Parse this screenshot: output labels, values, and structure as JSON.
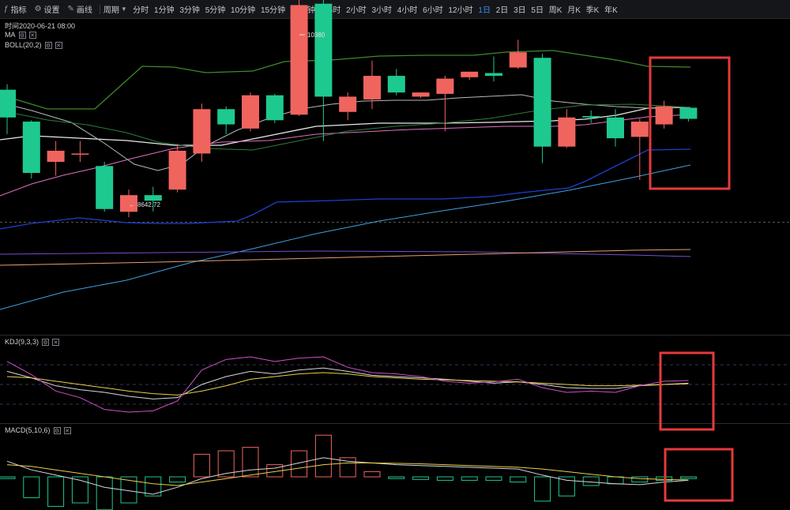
{
  "toolbar": {
    "indicators_label": "指标",
    "settings_label": "设置",
    "draw_label": "画线",
    "period_label": "周期",
    "periods": [
      "分时",
      "1分钟",
      "3分钟",
      "5分钟",
      "10分钟",
      "15分钟",
      "30分钟",
      "1小时",
      "2小时",
      "3小时",
      "4小时",
      "6小时",
      "12小时",
      "1日",
      "2日",
      "3日",
      "5日",
      "周K",
      "月K",
      "季K",
      "年K"
    ],
    "active_period": "1日"
  },
  "main": {
    "datetime_label": "时间2020-06-21 08:00",
    "ma_label": "MA",
    "boll_label": "BOLL(20,2)",
    "high_label": "10380",
    "low_label": "8642.72"
  },
  "kdj": {
    "label": "KDJ(9,3,3)"
  },
  "macd": {
    "label": "MACD(5,10,6)"
  },
  "colors": {
    "up": "#f0645e",
    "down": "#1ec98f",
    "accent": "#3d8df0",
    "highlight_box": "#e53a3a"
  },
  "chart_data": [
    {
      "type": "candlestick",
      "title": "",
      "high_marker": 10380,
      "low_marker": 8642.72,
      "candles": [
        {
          "o": 9520,
          "c": 9320,
          "h": 9560,
          "l": 9200
        },
        {
          "o": 9290,
          "c": 8920,
          "h": 9300,
          "l": 8880
        },
        {
          "o": 9000,
          "c": 9080,
          "h": 9150,
          "l": 8900
        },
        {
          "o": 9060,
          "c": 9060,
          "h": 9150,
          "l": 9000
        },
        {
          "o": 8970,
          "c": 8660,
          "h": 9000,
          "l": 8640
        },
        {
          "o": 8640,
          "c": 8760,
          "h": 8800,
          "l": 8600
        },
        {
          "o": 8760,
          "c": 8720,
          "h": 8820,
          "l": 8642.72
        },
        {
          "o": 8800,
          "c": 9080,
          "h": 9130,
          "l": 8780
        },
        {
          "o": 9060,
          "c": 9380,
          "h": 9420,
          "l": 9000
        },
        {
          "o": 9380,
          "c": 9270,
          "h": 9400,
          "l": 9200
        },
        {
          "o": 9240,
          "c": 9480,
          "h": 9500,
          "l": 9220
        },
        {
          "o": 9480,
          "c": 9300,
          "h": 9490,
          "l": 9280
        },
        {
          "o": 9340,
          "c": 10130,
          "h": 10380,
          "l": 9330
        },
        {
          "o": 10140,
          "c": 9470,
          "h": 10200,
          "l": 9150
        },
        {
          "o": 9360,
          "c": 9470,
          "h": 9500,
          "l": 9300
        },
        {
          "o": 9450,
          "c": 9620,
          "h": 9730,
          "l": 9380
        },
        {
          "o": 9620,
          "c": 9500,
          "h": 9670,
          "l": 9480
        },
        {
          "o": 9470,
          "c": 9500,
          "h": 9500,
          "l": 9460
        },
        {
          "o": 9490,
          "c": 9600,
          "h": 9620,
          "l": 9220
        },
        {
          "o": 9610,
          "c": 9650,
          "h": 9650,
          "l": 9590
        },
        {
          "o": 9640,
          "c": 9620,
          "h": 9760,
          "l": 9580
        },
        {
          "o": 9680,
          "c": 9790,
          "h": 9880,
          "l": 9670
        },
        {
          "o": 9750,
          "c": 9110,
          "h": 9780,
          "l": 8990
        },
        {
          "o": 9110,
          "c": 9320,
          "h": 9380,
          "l": 9100
        },
        {
          "o": 9330,
          "c": 9320,
          "h": 9370,
          "l": 9280
        },
        {
          "o": 9320,
          "c": 9170,
          "h": 9380,
          "l": 9110
        },
        {
          "o": 9180,
          "c": 9290,
          "h": 9310,
          "l": 8870
        },
        {
          "o": 9270,
          "c": 9400,
          "h": 9440,
          "l": 9240
        },
        {
          "o": 9390,
          "c": 9310,
          "h": 9390,
          "l": 9290
        }
      ]
    },
    {
      "type": "line",
      "title": "",
      "series": [
        {
          "name": "K",
          "values": [
            70,
            60,
            48,
            42,
            38,
            32,
            28,
            30,
            50,
            62,
            70,
            66,
            72,
            75,
            70,
            64,
            62,
            60,
            58,
            55,
            52,
            54,
            50,
            45,
            44,
            44,
            48,
            50,
            52
          ]
        },
        {
          "name": "D",
          "values": [
            62,
            60,
            55,
            50,
            45,
            40,
            36,
            34,
            40,
            48,
            58,
            62,
            66,
            68,
            66,
            62,
            60,
            58,
            57,
            56,
            55,
            54,
            52,
            50,
            48,
            48,
            49,
            50,
            51
          ]
        },
        {
          "name": "J",
          "values": [
            85,
            65,
            40,
            30,
            12,
            8,
            10,
            25,
            72,
            88,
            92,
            85,
            90,
            92,
            76,
            68,
            66,
            62,
            55,
            52,
            54,
            58,
            45,
            38,
            40,
            38,
            48,
            55,
            56
          ]
        }
      ]
    },
    {
      "type": "bar",
      "title": "",
      "values": [
        -10,
        -120,
        -170,
        -150,
        -190,
        -150,
        -110,
        -30,
        130,
        150,
        170,
        70,
        150,
        240,
        110,
        30,
        -10,
        -15,
        -20,
        -20,
        -20,
        -30,
        -140,
        -110,
        -50,
        -40,
        -30,
        -20,
        -10
      ],
      "series": [
        {
          "name": "DIF",
          "values": [
            90,
            40,
            10,
            -20,
            -60,
            -80,
            -100,
            -60,
            -10,
            20,
            40,
            50,
            80,
            110,
            90,
            80,
            70,
            65,
            60,
            55,
            50,
            45,
            10,
            -20,
            -30,
            -40,
            -45,
            -30,
            -20
          ]
        },
        {
          "name": "DEA",
          "values": [
            70,
            60,
            40,
            20,
            0,
            -20,
            -40,
            -50,
            -30,
            -10,
            10,
            30,
            50,
            70,
            80,
            80,
            78,
            75,
            70,
            65,
            60,
            55,
            45,
            30,
            15,
            0,
            -10,
            -15,
            -18
          ]
        }
      ]
    }
  ]
}
